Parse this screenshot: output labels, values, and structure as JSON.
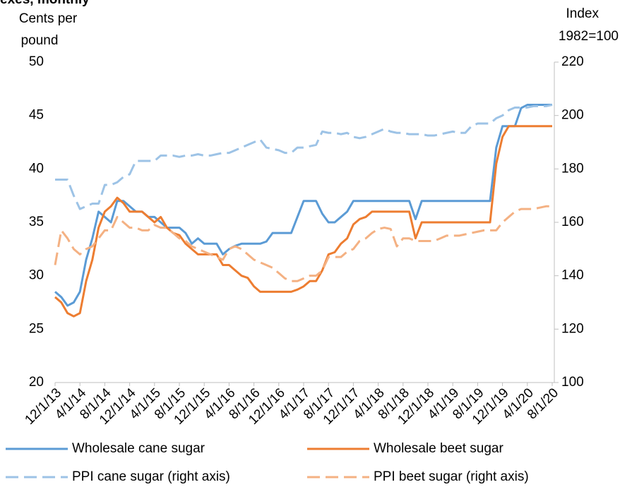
{
  "chart_data": {
    "type": "line",
    "title": "exes, monthly",
    "y_label": [
      "Cents per",
      "pound"
    ],
    "y2_label": [
      "Index",
      "1982=100"
    ],
    "categories": [
      "12/1/13",
      null,
      null,
      null,
      "4/1/14",
      null,
      null,
      null,
      "8/1/14",
      null,
      null,
      null,
      "12/1/14",
      null,
      null,
      null,
      "4/1/15",
      null,
      null,
      null,
      "8/1/15",
      null,
      null,
      null,
      "12/1/15",
      null,
      null,
      null,
      "4/1/16",
      null,
      null,
      null,
      "8/1/16",
      null,
      null,
      null,
      "12/1/16",
      null,
      null,
      null,
      "4/1/17",
      null,
      null,
      null,
      "8/1/17",
      null,
      null,
      null,
      "12/1/17",
      null,
      null,
      null,
      "4/1/18",
      null,
      null,
      null,
      "8/1/18",
      null,
      null,
      null,
      "12/1/18",
      null,
      null,
      null,
      "4/1/19",
      null,
      null,
      null,
      "8/1/19",
      null,
      null,
      null,
      "12/1/19",
      null,
      null,
      null,
      "4/1/20",
      null,
      null,
      null,
      "8/1/20"
    ],
    "ylim": [
      20,
      50
    ],
    "yticks": [
      20,
      25,
      30,
      35,
      40,
      45,
      50
    ],
    "y2lim": [
      100,
      220
    ],
    "y2ticks": [
      100,
      120,
      140,
      160,
      180,
      200,
      220
    ],
    "series": [
      {
        "name": "Wholesale cane sugar",
        "color": "#5b9bd5",
        "dashed": false,
        "values": [
          28.5,
          28,
          27.2,
          27.5,
          28.5,
          31.5,
          33.5,
          36,
          35.5,
          35,
          37,
          37,
          36.5,
          36,
          36,
          35.5,
          35.5,
          35,
          34.5,
          34.5,
          34.5,
          34,
          33,
          33.5,
          33,
          33,
          33,
          32,
          32.5,
          32.8,
          33,
          33,
          33,
          33,
          33.2,
          34,
          34,
          34,
          34,
          35.5,
          37,
          37,
          37,
          35.8,
          35,
          35,
          35.5,
          36,
          37,
          37,
          37,
          37,
          37,
          37,
          37,
          37,
          37,
          37,
          35.3,
          37,
          37,
          37,
          37,
          37,
          37,
          37,
          37,
          37,
          37,
          37,
          37,
          42,
          44,
          44,
          44,
          45.7,
          46,
          46,
          46,
          46,
          46
        ]
      },
      {
        "name": "Wholesale beet sugar",
        "color": "#ed7d31",
        "dashed": false,
        "values": [
          28,
          27.5,
          26.5,
          26.2,
          26.5,
          29.5,
          31.5,
          34.5,
          36,
          36.5,
          37.3,
          36.8,
          36,
          36,
          36,
          35.5,
          35,
          35.5,
          34.5,
          34,
          33.8,
          33,
          32.5,
          32,
          32,
          32,
          32,
          31,
          31,
          30.5,
          30,
          29.8,
          29,
          28.5,
          28.5,
          28.5,
          28.5,
          28.5,
          28.5,
          28.7,
          29,
          29.5,
          29.5,
          30.5,
          32,
          32.2,
          33,
          33.5,
          34.8,
          35.3,
          35.5,
          36,
          36,
          36,
          36,
          36,
          36,
          36,
          33.5,
          35,
          35,
          35,
          35,
          35,
          35,
          35,
          35,
          35,
          35,
          35,
          35,
          40.5,
          43,
          44,
          44,
          44,
          44,
          44,
          44,
          44,
          44
        ]
      },
      {
        "name": "PPI cane sugar (right axis)",
        "color": "#9dc3e6",
        "dashed": true,
        "axis": "y2",
        "values": [
          176,
          176,
          176,
          170,
          165,
          166,
          167,
          167,
          174,
          174,
          175,
          177,
          178,
          183,
          183,
          183,
          183,
          185,
          185,
          185,
          184.5,
          185,
          185,
          185.5,
          185,
          185,
          185.5,
          186,
          186,
          187,
          188,
          189,
          190,
          191,
          188,
          187.5,
          187,
          186,
          186,
          188,
          188,
          188.5,
          189,
          194,
          193.5,
          193.5,
          193,
          193.5,
          192,
          191.5,
          192,
          193,
          194,
          195,
          194,
          193.5,
          193.5,
          193,
          193,
          193,
          192.5,
          192.5,
          193,
          193.5,
          194,
          193.5,
          193.5,
          196,
          197,
          197,
          197,
          199,
          200,
          202,
          203,
          203,
          203,
          203.5,
          203.5,
          203.5,
          204
        ]
      },
      {
        "name": "PPI beet sugar (right axis)",
        "color": "#f4b183",
        "dashed": true,
        "axis": "y2",
        "values": [
          144,
          157,
          154,
          150,
          148,
          150,
          151,
          154,
          157,
          157,
          162,
          160,
          158,
          158,
          157,
          157,
          159,
          158,
          158,
          156,
          154,
          153,
          151,
          150,
          149,
          148,
          147,
          146,
          150,
          151,
          150,
          148,
          146,
          145,
          144,
          143,
          141,
          139,
          138,
          138,
          139,
          140,
          140,
          142,
          147,
          147,
          147,
          149,
          150,
          153,
          154,
          156,
          157.5,
          158,
          157.5,
          151,
          154,
          154,
          153,
          153,
          153,
          153,
          154,
          155,
          155,
          155,
          155.5,
          156,
          156.5,
          157,
          157,
          157,
          160,
          162,
          164,
          165,
          165,
          165,
          165.5,
          166,
          166
        ]
      }
    ]
  }
}
